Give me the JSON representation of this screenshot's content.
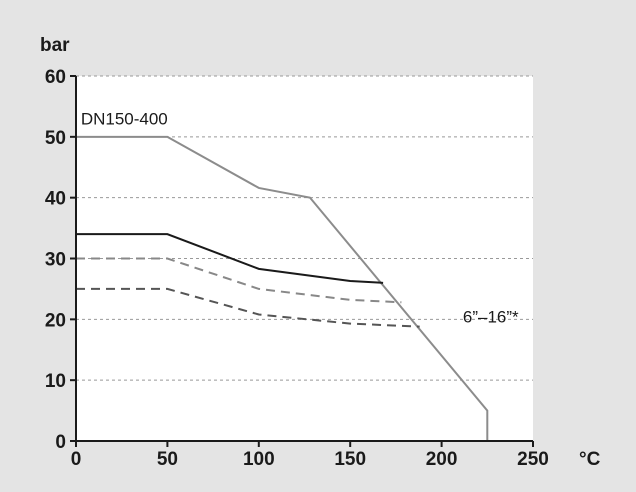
{
  "chart_data": {
    "type": "line",
    "ylabel": "bar",
    "xlabel": "°C",
    "xlim": [
      0,
      250
    ],
    "ylim": [
      0,
      60
    ],
    "x_ticks": [
      "0",
      "50",
      "100",
      "150",
      "200",
      "250"
    ],
    "y_ticks": [
      "0",
      "10",
      "20",
      "30",
      "40",
      "50",
      "60"
    ],
    "grid": "horizontal dashed",
    "colors": {
      "background": "#e4e4e4",
      "plot": "#ffffff",
      "axis": "#1a1a1a",
      "grid": "#999999",
      "series_dark": "#1a1a1a",
      "series_mid": "#555555",
      "series_light": "#888888",
      "series_gray": "#8c8c8c"
    },
    "annotations": [
      {
        "text": "DN150-400",
        "x": 1,
        "y": 52
      },
      {
        "text": "6”–16”*",
        "x": 210,
        "y": 19.5
      }
    ],
    "series": [
      {
        "style": "solid",
        "color": "#8c8c8c",
        "points": [
          [
            0,
            50
          ],
          [
            50,
            50
          ],
          [
            100,
            41.6
          ],
          [
            128,
            40
          ],
          [
            225,
            5
          ],
          [
            225,
            0
          ]
        ]
      },
      {
        "style": "solid",
        "color": "#1a1a1a",
        "points": [
          [
            0,
            34
          ],
          [
            50,
            34
          ],
          [
            100,
            28.3
          ],
          [
            150,
            26.3
          ],
          [
            168,
            26
          ]
        ]
      },
      {
        "style": "dashed",
        "color": "#888888",
        "points": [
          [
            0,
            30
          ],
          [
            50,
            30
          ],
          [
            100,
            25
          ],
          [
            150,
            23.2
          ],
          [
            178,
            22.8
          ]
        ]
      },
      {
        "style": "dashed",
        "color": "#555555",
        "points": [
          [
            0,
            25
          ],
          [
            50,
            25
          ],
          [
            100,
            20.8
          ],
          [
            150,
            19.3
          ],
          [
            188,
            18.8
          ]
        ]
      }
    ]
  }
}
